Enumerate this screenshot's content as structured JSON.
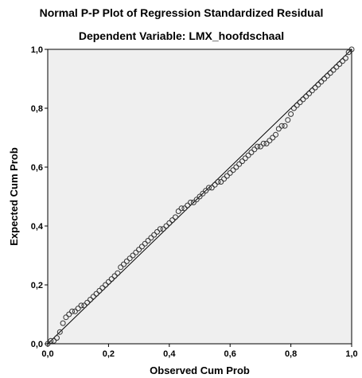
{
  "chart_data": {
    "type": "scatter",
    "title": "Normal P-P Plot of Regression Standardized Residual",
    "subtitle": "Dependent Variable: LMX_hoofdschaal",
    "xlabel": "Observed Cum Prob",
    "ylabel": "Expected Cum Prob",
    "xlim": [
      0,
      1
    ],
    "ylim": [
      0,
      1
    ],
    "x_ticks": [
      "0,0",
      "0,2",
      "0,4",
      "0,6",
      "0,8",
      "1,0"
    ],
    "y_ticks": [
      "0,0",
      "0,2",
      "0,4",
      "0,6",
      "0,8",
      "1,0"
    ],
    "grid": false,
    "reference_line": {
      "from": [
        0,
        0
      ],
      "to": [
        1,
        1
      ]
    },
    "colors": {
      "plot_background": "#efefef",
      "marker": "#333333",
      "reference_line": "#000000"
    },
    "series": [
      {
        "marker": "circle",
        "x": [
          0.0,
          0.01,
          0.02,
          0.03,
          0.04,
          0.05,
          0.06,
          0.07,
          0.08,
          0.09,
          0.1,
          0.11,
          0.12,
          0.13,
          0.14,
          0.15,
          0.16,
          0.17,
          0.18,
          0.19,
          0.2,
          0.21,
          0.22,
          0.23,
          0.24,
          0.25,
          0.26,
          0.27,
          0.28,
          0.29,
          0.3,
          0.31,
          0.32,
          0.33,
          0.34,
          0.35,
          0.36,
          0.37,
          0.38,
          0.39,
          0.4,
          0.41,
          0.42,
          0.43,
          0.44,
          0.45,
          0.46,
          0.47,
          0.48,
          0.49,
          0.5,
          0.51,
          0.52,
          0.53,
          0.54,
          0.55,
          0.56,
          0.57,
          0.58,
          0.59,
          0.6,
          0.61,
          0.62,
          0.63,
          0.64,
          0.65,
          0.66,
          0.67,
          0.68,
          0.69,
          0.7,
          0.71,
          0.72,
          0.73,
          0.74,
          0.75,
          0.76,
          0.77,
          0.78,
          0.79,
          0.8,
          0.81,
          0.82,
          0.83,
          0.84,
          0.85,
          0.86,
          0.87,
          0.88,
          0.89,
          0.9,
          0.91,
          0.92,
          0.93,
          0.94,
          0.95,
          0.96,
          0.97,
          0.98,
          0.99,
          1.0
        ],
        "y": [
          0.0,
          0.01,
          0.01,
          0.02,
          0.04,
          0.07,
          0.09,
          0.1,
          0.11,
          0.11,
          0.12,
          0.13,
          0.13,
          0.14,
          0.15,
          0.16,
          0.17,
          0.18,
          0.19,
          0.2,
          0.21,
          0.22,
          0.23,
          0.24,
          0.26,
          0.27,
          0.28,
          0.29,
          0.3,
          0.31,
          0.32,
          0.33,
          0.34,
          0.35,
          0.36,
          0.37,
          0.38,
          0.39,
          0.39,
          0.4,
          0.41,
          0.42,
          0.43,
          0.45,
          0.46,
          0.46,
          0.47,
          0.48,
          0.48,
          0.49,
          0.5,
          0.51,
          0.52,
          0.53,
          0.53,
          0.54,
          0.55,
          0.55,
          0.56,
          0.57,
          0.58,
          0.59,
          0.6,
          0.61,
          0.62,
          0.63,
          0.64,
          0.65,
          0.66,
          0.67,
          0.67,
          0.68,
          0.68,
          0.69,
          0.7,
          0.71,
          0.73,
          0.74,
          0.74,
          0.76,
          0.78,
          0.8,
          0.81,
          0.82,
          0.83,
          0.84,
          0.85,
          0.86,
          0.87,
          0.88,
          0.89,
          0.9,
          0.91,
          0.92,
          0.93,
          0.94,
          0.95,
          0.96,
          0.97,
          0.99,
          1.0
        ]
      }
    ]
  }
}
